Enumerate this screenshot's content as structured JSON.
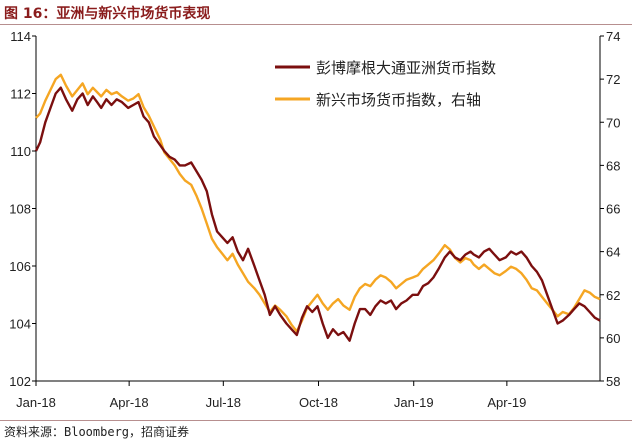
{
  "header": {
    "title": "图 16：亚洲与新兴市场货币表现"
  },
  "footer": {
    "source": "资料来源：Bloomberg，招商证券"
  },
  "colors": {
    "series_1": "#7b0f0f",
    "series_2": "#f5a623",
    "title": "#8a1c1c",
    "rule": "#b78f8f"
  },
  "chart_data": {
    "type": "line",
    "title": "",
    "xlabel": "",
    "ylabel": "",
    "x_ticks": [
      "Jan-18",
      "Apr-18",
      "Jul-18",
      "Oct-18",
      "Jan-19",
      "Apr-19"
    ],
    "x_tick_dates": [
      "2018-01-01",
      "2018-04-01",
      "2018-07-01",
      "2018-10-01",
      "2019-01-01",
      "2019-04-01"
    ],
    "x_range": [
      "2018-01-01",
      "2019-06-30"
    ],
    "y_left": {
      "min": 102,
      "max": 114,
      "ticks": [
        102,
        104,
        106,
        108,
        110,
        112,
        114
      ]
    },
    "y_right": {
      "min": 58,
      "max": 74,
      "ticks": [
        58,
        60,
        62,
        64,
        66,
        68,
        70,
        72,
        74
      ]
    },
    "legend_position": "top-right",
    "series": [
      {
        "name": "彭博摩根大通亚洲货币指数",
        "axis": "left",
        "color": "#7b0f0f",
        "points": [
          [
            "2018-01-01",
            110.0
          ],
          [
            "2018-01-05",
            110.3
          ],
          [
            "2018-01-10",
            111.0
          ],
          [
            "2018-01-15",
            111.5
          ],
          [
            "2018-01-20",
            112.0
          ],
          [
            "2018-01-25",
            112.2
          ],
          [
            "2018-01-30",
            111.8
          ],
          [
            "2018-02-05",
            111.4
          ],
          [
            "2018-02-10",
            111.8
          ],
          [
            "2018-02-15",
            112.0
          ],
          [
            "2018-02-20",
            111.6
          ],
          [
            "2018-02-25",
            111.9
          ],
          [
            "2018-03-01",
            111.7
          ],
          [
            "2018-03-05",
            111.5
          ],
          [
            "2018-03-10",
            111.8
          ],
          [
            "2018-03-15",
            111.6
          ],
          [
            "2018-03-20",
            111.8
          ],
          [
            "2018-03-25",
            111.7
          ],
          [
            "2018-03-31",
            111.5
          ],
          [
            "2018-04-05",
            111.6
          ],
          [
            "2018-04-10",
            111.7
          ],
          [
            "2018-04-15",
            111.2
          ],
          [
            "2018-04-20",
            111.0
          ],
          [
            "2018-04-25",
            110.5
          ],
          [
            "2018-05-01",
            110.2
          ],
          [
            "2018-05-05",
            110.0
          ],
          [
            "2018-05-10",
            109.8
          ],
          [
            "2018-05-15",
            109.7
          ],
          [
            "2018-05-20",
            109.5
          ],
          [
            "2018-05-25",
            109.5
          ],
          [
            "2018-05-31",
            109.6
          ],
          [
            "2018-06-05",
            109.3
          ],
          [
            "2018-06-10",
            109.0
          ],
          [
            "2018-06-15",
            108.6
          ],
          [
            "2018-06-20",
            107.8
          ],
          [
            "2018-06-25",
            107.2
          ],
          [
            "2018-06-30",
            107.0
          ],
          [
            "2018-07-05",
            106.8
          ],
          [
            "2018-07-10",
            107.0
          ],
          [
            "2018-07-15",
            106.5
          ],
          [
            "2018-07-20",
            106.2
          ],
          [
            "2018-07-25",
            106.6
          ],
          [
            "2018-07-31",
            106.0
          ],
          [
            "2018-08-05",
            105.5
          ],
          [
            "2018-08-10",
            105.0
          ],
          [
            "2018-08-15",
            104.3
          ],
          [
            "2018-08-20",
            104.6
          ],
          [
            "2018-08-25",
            104.3
          ],
          [
            "2018-08-31",
            104.0
          ],
          [
            "2018-09-05",
            103.8
          ],
          [
            "2018-09-10",
            103.6
          ],
          [
            "2018-09-15",
            104.2
          ],
          [
            "2018-09-20",
            104.6
          ],
          [
            "2018-09-25",
            104.4
          ],
          [
            "2018-09-30",
            104.6
          ],
          [
            "2018-10-05",
            104.0
          ],
          [
            "2018-10-10",
            103.5
          ],
          [
            "2018-10-15",
            103.8
          ],
          [
            "2018-10-20",
            103.6
          ],
          [
            "2018-10-25",
            103.7
          ],
          [
            "2018-10-31",
            103.4
          ],
          [
            "2018-11-05",
            104.0
          ],
          [
            "2018-11-10",
            104.5
          ],
          [
            "2018-11-15",
            104.5
          ],
          [
            "2018-11-20",
            104.3
          ],
          [
            "2018-11-25",
            104.6
          ],
          [
            "2018-11-30",
            104.8
          ],
          [
            "2018-12-05",
            104.7
          ],
          [
            "2018-12-10",
            104.8
          ],
          [
            "2018-12-15",
            104.5
          ],
          [
            "2018-12-20",
            104.7
          ],
          [
            "2018-12-25",
            104.8
          ],
          [
            "2018-12-31",
            105.0
          ],
          [
            "2019-01-05",
            105.0
          ],
          [
            "2019-01-10",
            105.3
          ],
          [
            "2019-01-15",
            105.4
          ],
          [
            "2019-01-20",
            105.6
          ],
          [
            "2019-01-25",
            105.9
          ],
          [
            "2019-01-31",
            106.3
          ],
          [
            "2019-02-05",
            106.5
          ],
          [
            "2019-02-10",
            106.3
          ],
          [
            "2019-02-15",
            106.2
          ],
          [
            "2019-02-20",
            106.4
          ],
          [
            "2019-02-25",
            106.5
          ],
          [
            "2019-02-28",
            106.4
          ],
          [
            "2019-03-05",
            106.3
          ],
          [
            "2019-03-10",
            106.5
          ],
          [
            "2019-03-15",
            106.6
          ],
          [
            "2019-03-20",
            106.4
          ],
          [
            "2019-03-25",
            106.2
          ],
          [
            "2019-03-31",
            106.3
          ],
          [
            "2019-04-05",
            106.5
          ],
          [
            "2019-04-10",
            106.4
          ],
          [
            "2019-04-15",
            106.5
          ],
          [
            "2019-04-20",
            106.3
          ],
          [
            "2019-04-25",
            106.0
          ],
          [
            "2019-04-30",
            105.8
          ],
          [
            "2019-05-05",
            105.5
          ],
          [
            "2019-05-10",
            105.0
          ],
          [
            "2019-05-15",
            104.5
          ],
          [
            "2019-05-20",
            104.0
          ],
          [
            "2019-05-25",
            104.1
          ],
          [
            "2019-05-31",
            104.3
          ],
          [
            "2019-06-05",
            104.5
          ],
          [
            "2019-06-10",
            104.7
          ],
          [
            "2019-06-15",
            104.6
          ],
          [
            "2019-06-20",
            104.4
          ],
          [
            "2019-06-25",
            104.2
          ],
          [
            "2019-06-30",
            104.1
          ]
        ]
      },
      {
        "name": "新兴市场货币指数，右轴",
        "axis": "right",
        "color": "#f5a623",
        "points": [
          [
            "2018-01-01",
            70.2
          ],
          [
            "2018-01-05",
            70.4
          ],
          [
            "2018-01-10",
            71.0
          ],
          [
            "2018-01-15",
            71.5
          ],
          [
            "2018-01-20",
            72.0
          ],
          [
            "2018-01-25",
            72.2
          ],
          [
            "2018-01-30",
            71.7
          ],
          [
            "2018-02-05",
            71.2
          ],
          [
            "2018-02-10",
            71.5
          ],
          [
            "2018-02-15",
            71.8
          ],
          [
            "2018-02-20",
            71.3
          ],
          [
            "2018-02-25",
            71.6
          ],
          [
            "2018-03-01",
            71.4
          ],
          [
            "2018-03-05",
            71.2
          ],
          [
            "2018-03-10",
            71.5
          ],
          [
            "2018-03-15",
            71.3
          ],
          [
            "2018-03-20",
            71.4
          ],
          [
            "2018-03-25",
            71.2
          ],
          [
            "2018-03-31",
            71.0
          ],
          [
            "2018-04-05",
            71.1
          ],
          [
            "2018-04-10",
            71.3
          ],
          [
            "2018-04-15",
            70.7
          ],
          [
            "2018-04-20",
            70.3
          ],
          [
            "2018-04-25",
            69.8
          ],
          [
            "2018-05-01",
            69.2
          ],
          [
            "2018-05-05",
            68.6
          ],
          [
            "2018-05-10",
            68.3
          ],
          [
            "2018-05-15",
            68.0
          ],
          [
            "2018-05-20",
            67.6
          ],
          [
            "2018-05-25",
            67.3
          ],
          [
            "2018-05-31",
            67.1
          ],
          [
            "2018-06-05",
            66.6
          ],
          [
            "2018-06-10",
            66.0
          ],
          [
            "2018-06-15",
            65.3
          ],
          [
            "2018-06-20",
            64.6
          ],
          [
            "2018-06-25",
            64.2
          ],
          [
            "2018-06-30",
            63.9
          ],
          [
            "2018-07-05",
            63.6
          ],
          [
            "2018-07-10",
            63.9
          ],
          [
            "2018-07-15",
            63.4
          ],
          [
            "2018-07-20",
            63.0
          ],
          [
            "2018-07-25",
            62.6
          ],
          [
            "2018-07-31",
            62.3
          ],
          [
            "2018-08-05",
            62.0
          ],
          [
            "2018-08-10",
            61.6
          ],
          [
            "2018-08-15",
            61.2
          ],
          [
            "2018-08-20",
            61.5
          ],
          [
            "2018-08-25",
            61.3
          ],
          [
            "2018-08-31",
            61.0
          ],
          [
            "2018-09-05",
            60.6
          ],
          [
            "2018-09-10",
            60.3
          ],
          [
            "2018-09-15",
            60.8
          ],
          [
            "2018-09-20",
            61.4
          ],
          [
            "2018-09-25",
            61.7
          ],
          [
            "2018-09-30",
            62.0
          ],
          [
            "2018-10-05",
            61.6
          ],
          [
            "2018-10-10",
            61.3
          ],
          [
            "2018-10-15",
            61.6
          ],
          [
            "2018-10-20",
            61.8
          ],
          [
            "2018-10-25",
            61.5
          ],
          [
            "2018-10-31",
            61.3
          ],
          [
            "2018-11-05",
            61.9
          ],
          [
            "2018-11-10",
            62.3
          ],
          [
            "2018-11-15",
            62.5
          ],
          [
            "2018-11-20",
            62.4
          ],
          [
            "2018-11-25",
            62.7
          ],
          [
            "2018-11-30",
            62.9
          ],
          [
            "2018-12-05",
            62.8
          ],
          [
            "2018-12-10",
            62.6
          ],
          [
            "2018-12-15",
            62.3
          ],
          [
            "2018-12-20",
            62.5
          ],
          [
            "2018-12-25",
            62.7
          ],
          [
            "2018-12-31",
            62.8
          ],
          [
            "2019-01-05",
            62.9
          ],
          [
            "2019-01-10",
            63.2
          ],
          [
            "2019-01-15",
            63.4
          ],
          [
            "2019-01-20",
            63.6
          ],
          [
            "2019-01-25",
            63.9
          ],
          [
            "2019-01-31",
            64.3
          ],
          [
            "2019-02-05",
            64.1
          ],
          [
            "2019-02-10",
            63.7
          ],
          [
            "2019-02-15",
            63.5
          ],
          [
            "2019-02-20",
            63.7
          ],
          [
            "2019-02-25",
            63.6
          ],
          [
            "2019-02-28",
            63.4
          ],
          [
            "2019-03-05",
            63.2
          ],
          [
            "2019-03-10",
            63.4
          ],
          [
            "2019-03-15",
            63.2
          ],
          [
            "2019-03-20",
            63.0
          ],
          [
            "2019-03-25",
            62.9
          ],
          [
            "2019-03-31",
            63.1
          ],
          [
            "2019-04-05",
            63.3
          ],
          [
            "2019-04-10",
            63.2
          ],
          [
            "2019-04-15",
            63.0
          ],
          [
            "2019-04-20",
            62.7
          ],
          [
            "2019-04-25",
            62.3
          ],
          [
            "2019-04-30",
            62.2
          ],
          [
            "2019-05-05",
            61.9
          ],
          [
            "2019-05-10",
            61.6
          ],
          [
            "2019-05-15",
            61.3
          ],
          [
            "2019-05-20",
            61.0
          ],
          [
            "2019-05-25",
            61.2
          ],
          [
            "2019-05-31",
            61.1
          ],
          [
            "2019-06-05",
            61.4
          ],
          [
            "2019-06-10",
            61.8
          ],
          [
            "2019-06-15",
            62.2
          ],
          [
            "2019-06-20",
            62.1
          ],
          [
            "2019-06-25",
            61.9
          ],
          [
            "2019-06-30",
            61.8
          ]
        ]
      }
    ]
  }
}
